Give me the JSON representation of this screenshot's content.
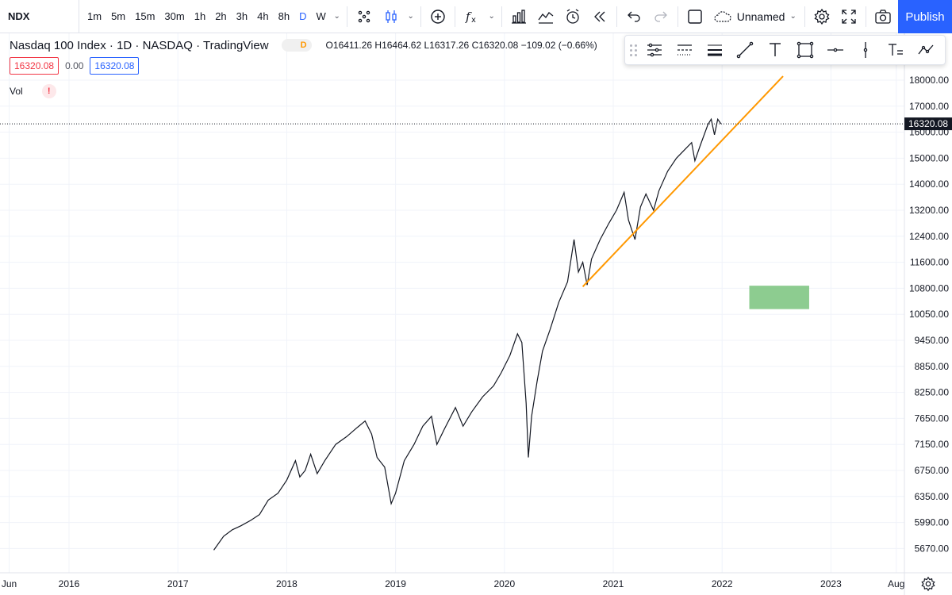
{
  "toolbar": {
    "symbol": "NDX",
    "intervals": [
      "1m",
      "5m",
      "15m",
      "30m",
      "1h",
      "2h",
      "3h",
      "4h",
      "8h",
      "D",
      "W"
    ],
    "active_interval": "D",
    "layout_name": "Unnamed",
    "publish_label": "Publish",
    "icons": [
      "chart-style-icon",
      "candles-icon",
      "add-indicator-icon",
      "fx-icon",
      "templates-icon",
      "compare-icon",
      "alert-icon",
      "replay-icon",
      "undo-icon",
      "redo-icon",
      "fullscreen-square-icon",
      "cloud-icon",
      "settings-icon",
      "expand-icon",
      "camera-icon"
    ]
  },
  "legend": {
    "title": "Nasdaq 100 Index · 1D · NASDAQ · TradingView",
    "badge": "D",
    "open_label": "O",
    "open": "16411.26",
    "high_label": "H",
    "high": "16464.62",
    "low_label": "L",
    "low": "16317.26",
    "close_label": "C",
    "close": "16320.08",
    "change": "−109.02 (−0.66%)",
    "bid": "16320.08",
    "spread": "0.00",
    "ask": "16320.08",
    "vol_label": "Vol",
    "vol_warning": "!"
  },
  "chart": {
    "last_price_label": "16320.08",
    "price_ticks": [
      {
        "label": "18000.00",
        "value": 18000
      },
      {
        "label": "17000.00",
        "value": 17000
      },
      {
        "label": "16000.00",
        "value": 16000
      },
      {
        "label": "15000.00",
        "value": 15000
      },
      {
        "label": "14000.00",
        "value": 14000
      },
      {
        "label": "13200.00",
        "value": 13200
      },
      {
        "label": "12400.00",
        "value": 12400
      },
      {
        "label": "11600.00",
        "value": 11600
      },
      {
        "label": "10800.00",
        "value": 10800
      },
      {
        "label": "10050.00",
        "value": 10050
      },
      {
        "label": "9450.00",
        "value": 9450
      },
      {
        "label": "8850.00",
        "value": 8850
      },
      {
        "label": "8250.00",
        "value": 8250
      },
      {
        "label": "7650.00",
        "value": 7650
      },
      {
        "label": "7150.00",
        "value": 7150
      },
      {
        "label": "6750.00",
        "value": 6750
      },
      {
        "label": "6350.00",
        "value": 6350
      },
      {
        "label": "5990.00",
        "value": 5990
      },
      {
        "label": "5670.00",
        "value": 5670
      }
    ],
    "time_ticks": [
      {
        "label": "Jun",
        "t": 2015.45
      },
      {
        "label": "2016",
        "t": 2016.0
      },
      {
        "label": "2017",
        "t": 2017.0
      },
      {
        "label": "2018",
        "t": 2018.0
      },
      {
        "label": "2019",
        "t": 2019.0
      },
      {
        "label": "2020",
        "t": 2020.0
      },
      {
        "label": "2021",
        "t": 2021.0
      },
      {
        "label": "2022",
        "t": 2022.0
      },
      {
        "label": "2023",
        "t": 2023.0
      },
      {
        "label": "Aug",
        "t": 2023.6
      }
    ],
    "price_path": [
      [
        2017.33,
        5650
      ],
      [
        2017.42,
        5820
      ],
      [
        2017.5,
        5900
      ],
      [
        2017.58,
        5950
      ],
      [
        2017.67,
        6020
      ],
      [
        2017.75,
        6100
      ],
      [
        2017.83,
        6300
      ],
      [
        2017.92,
        6400
      ],
      [
        2018.0,
        6600
      ],
      [
        2018.08,
        6900
      ],
      [
        2018.12,
        6650
      ],
      [
        2018.17,
        6750
      ],
      [
        2018.22,
        7000
      ],
      [
        2018.28,
        6700
      ],
      [
        2018.35,
        6900
      ],
      [
        2018.45,
        7150
      ],
      [
        2018.55,
        7300
      ],
      [
        2018.65,
        7480
      ],
      [
        2018.72,
        7600
      ],
      [
        2018.78,
        7350
      ],
      [
        2018.83,
        6950
      ],
      [
        2018.9,
        6800
      ],
      [
        2018.96,
        6250
      ],
      [
        2019.0,
        6400
      ],
      [
        2019.08,
        6900
      ],
      [
        2019.17,
        7150
      ],
      [
        2019.25,
        7500
      ],
      [
        2019.33,
        7700
      ],
      [
        2019.38,
        7150
      ],
      [
        2019.45,
        7450
      ],
      [
        2019.55,
        7900
      ],
      [
        2019.62,
        7500
      ],
      [
        2019.7,
        7800
      ],
      [
        2019.8,
        8150
      ],
      [
        2019.9,
        8400
      ],
      [
        2019.97,
        8700
      ],
      [
        2020.05,
        9100
      ],
      [
        2020.12,
        9600
      ],
      [
        2020.16,
        9400
      ],
      [
        2020.2,
        8000
      ],
      [
        2020.22,
        6950
      ],
      [
        2020.25,
        7700
      ],
      [
        2020.3,
        8500
      ],
      [
        2020.35,
        9200
      ],
      [
        2020.42,
        9700
      ],
      [
        2020.5,
        10400
      ],
      [
        2020.58,
        11000
      ],
      [
        2020.64,
        12300
      ],
      [
        2020.68,
        11300
      ],
      [
        2020.72,
        11600
      ],
      [
        2020.76,
        10900
      ],
      [
        2020.8,
        11700
      ],
      [
        2020.88,
        12300
      ],
      [
        2020.96,
        12800
      ],
      [
        2021.03,
        13200
      ],
      [
        2021.1,
        13750
      ],
      [
        2021.14,
        12900
      ],
      [
        2021.2,
        12300
      ],
      [
        2021.25,
        13300
      ],
      [
        2021.3,
        13700
      ],
      [
        2021.37,
        13200
      ],
      [
        2021.42,
        13800
      ],
      [
        2021.5,
        14500
      ],
      [
        2021.58,
        15000
      ],
      [
        2021.65,
        15300
      ],
      [
        2021.72,
        15600
      ],
      [
        2021.75,
        14900
      ],
      [
        2021.8,
        15500
      ],
      [
        2021.87,
        16300
      ],
      [
        2021.9,
        16500
      ],
      [
        2021.93,
        15900
      ],
      [
        2021.96,
        16500
      ],
      [
        2021.99,
        16320
      ]
    ],
    "trendline": [
      [
        2020.72,
        10850
      ],
      [
        2022.56,
        18150
      ]
    ],
    "box": {
      "t0": 2022.25,
      "t1": 2022.8,
      "p_high": 10880,
      "p_low": 10200
    },
    "colors": {
      "trendline": "#ff9800",
      "box": "#81c784",
      "last_price_bg": "#131722",
      "candles": "#131722"
    }
  }
}
